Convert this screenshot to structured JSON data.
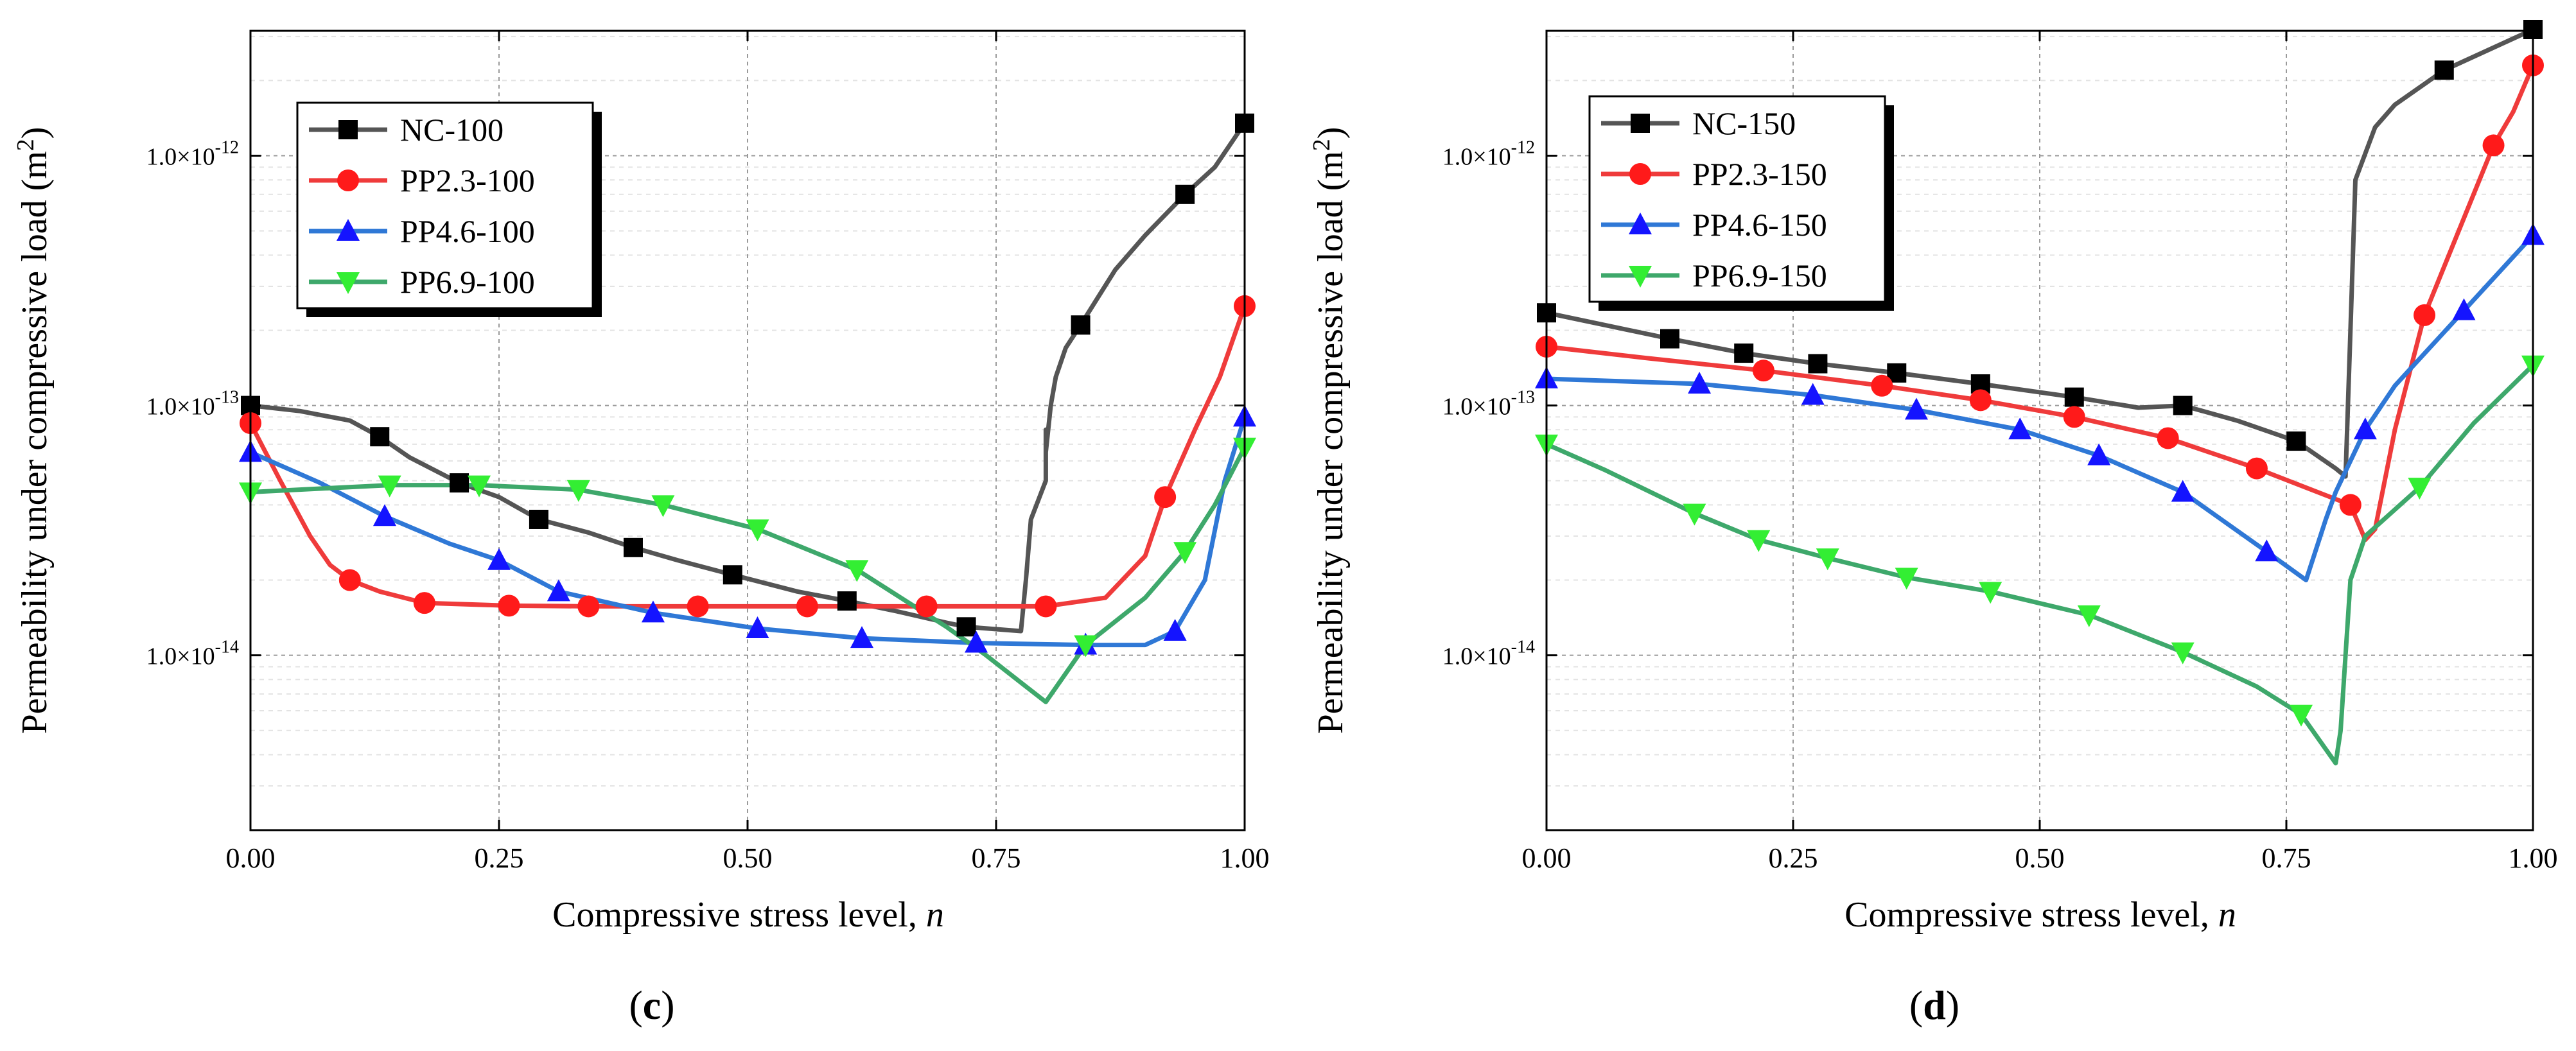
{
  "colors": {
    "NC": "#555555",
    "PP2.3": "#ef3b3b",
    "PP4.6": "#2f78d6",
    "PP6.9": "#3ea86b",
    "marker_NC": "#000000",
    "marker_PP2.3": "#ff1a1a",
    "marker_PP4.6": "#1414ff",
    "marker_PP6.9": "#33ee33"
  },
  "chart_data": [
    {
      "type": "line",
      "panel_label": "c",
      "xlabel": "Compressive stress level, ",
      "xlabel_var": "n",
      "ylabel": "Permeability under compressive load (m",
      "ylabel_sup": "2",
      "ylabel_end": ")",
      "x_scale": "linear",
      "y_scale": "log",
      "xlim": [
        0,
        1
      ],
      "ylim_log10": [
        -14.7,
        -11.5
      ],
      "x_ticks": [
        0,
        0.25,
        0.5,
        0.75,
        1
      ],
      "x_tick_labels": [
        "0.00",
        "0.25",
        "0.50",
        "0.75",
        "1.00"
      ],
      "y_ticks_log10": [
        -14,
        -13,
        -12
      ],
      "y_tick_mantissa": "1.0×10",
      "y_tick_exponents": [
        "-14",
        "-13",
        "-12"
      ],
      "grid": true,
      "legend_position": "top-left",
      "series": [
        {
          "name": "NC-100",
          "color_key": "NC",
          "marker": "square",
          "x": [
            0.0,
            0.05,
            0.1,
            0.13,
            0.16,
            0.21,
            0.25,
            0.29,
            0.34,
            0.385,
            0.43,
            0.485,
            0.55,
            0.6,
            0.65,
            0.7,
            0.72,
            0.775,
            0.78,
            0.785,
            0.8,
            0.8,
            0.8,
            0.805,
            0.81,
            0.82,
            0.835,
            0.87,
            0.9,
            0.94,
            0.97,
            1.0
          ],
          "y": [
            1e-13,
            9.5e-14,
            8.7e-14,
            7.5e-14,
            6.2e-14,
            4.9e-14,
            4.3e-14,
            3.5e-14,
            3.1e-14,
            2.7e-14,
            2.4e-14,
            2.1e-14,
            1.8e-14,
            1.65e-14,
            1.5e-14,
            1.35e-14,
            1.3e-14,
            1.25e-14,
            2e-14,
            3.5e-14,
            5e-14,
            8e-14,
            6.5e-14,
            1e-13,
            1.3e-13,
            1.7e-13,
            2.1e-13,
            3.5e-13,
            4.8e-13,
            7e-13,
            9e-13,
            1.35e-12
          ],
          "marker_x": [
            0.0,
            0.13,
            0.21,
            0.29,
            0.385,
            0.485,
            0.6,
            0.72,
            0.835,
            0.94,
            1.0
          ]
        },
        {
          "name": "PP2.3-100",
          "color_key": "PP2.3",
          "marker": "circle",
          "x": [
            0.0,
            0.03,
            0.06,
            0.08,
            0.1,
            0.13,
            0.175,
            0.26,
            0.34,
            0.45,
            0.56,
            0.68,
            0.8,
            0.86,
            0.9,
            0.92,
            0.95,
            0.975,
            1.0
          ],
          "y": [
            8.5e-14,
            5e-14,
            3e-14,
            2.3e-14,
            2e-14,
            1.8e-14,
            1.62e-14,
            1.58e-14,
            1.57e-14,
            1.57e-14,
            1.57e-14,
            1.57e-14,
            1.57e-14,
            1.7e-14,
            2.5e-14,
            4.3e-14,
            8e-14,
            1.3e-13,
            2.5e-13
          ],
          "marker_x": [
            0.0,
            0.1,
            0.175,
            0.26,
            0.34,
            0.45,
            0.56,
            0.68,
            0.8,
            0.92,
            1.0
          ]
        },
        {
          "name": "PP4.6-100",
          "color_key": "PP4.6",
          "marker": "triangle-up",
          "x": [
            0.0,
            0.07,
            0.135,
            0.2,
            0.25,
            0.31,
            0.405,
            0.51,
            0.615,
            0.73,
            0.84,
            0.9,
            0.93,
            0.96,
            0.98,
            1.0
          ],
          "y": [
            6.5e-14,
            4.9e-14,
            3.6e-14,
            2.8e-14,
            2.4e-14,
            1.8e-14,
            1.48e-14,
            1.28e-14,
            1.17e-14,
            1.12e-14,
            1.1e-14,
            1.1e-14,
            1.25e-14,
            2e-14,
            5e-14,
            9e-14
          ],
          "marker_x": [
            0.0,
            0.135,
            0.25,
            0.31,
            0.405,
            0.51,
            0.615,
            0.73,
            0.84,
            0.93,
            1.0
          ]
        },
        {
          "name": "PP6.9-100",
          "color_key": "PP6.9",
          "marker": "triangle-down",
          "x": [
            0.0,
            0.14,
            0.23,
            0.33,
            0.415,
            0.51,
            0.61,
            0.7,
            0.74,
            0.78,
            0.8,
            0.84,
            0.9,
            0.94,
            0.97,
            1.0
          ],
          "y": [
            4.5e-14,
            4.8e-14,
            4.8e-14,
            4.6e-14,
            4e-14,
            3.2e-14,
            2.2e-14,
            1.3e-14,
            1e-14,
            7.5e-15,
            6.5e-15,
            1.1e-14,
            1.7e-14,
            2.6e-14,
            4e-14,
            6.8e-14
          ],
          "marker_x": [
            0.0,
            0.14,
            0.23,
            0.33,
            0.415,
            0.51,
            0.61,
            0.84,
            0.94,
            1.0
          ]
        }
      ]
    },
    {
      "type": "line",
      "panel_label": "d",
      "xlabel": "Compressive stress level, ",
      "xlabel_var": "n",
      "ylabel": "Permeability under compressive load (m",
      "ylabel_sup": "2",
      "ylabel_end": ")",
      "x_scale": "linear",
      "y_scale": "log",
      "xlim": [
        0,
        1
      ],
      "ylim_log10": [
        -14.7,
        -11.5
      ],
      "x_ticks": [
        0,
        0.25,
        0.5,
        0.75,
        1
      ],
      "x_tick_labels": [
        "0.00",
        "0.25",
        "0.50",
        "0.75",
        "1.00"
      ],
      "y_ticks_log10": [
        -14,
        -13,
        -12
      ],
      "y_tick_mantissa": "1.0×10",
      "y_tick_exponents": [
        "-14",
        "-13",
        "-12"
      ],
      "grid": true,
      "legend_position": "top-left",
      "series": [
        {
          "name": "NC-150",
          "color_key": "NC",
          "marker": "square",
          "x": [
            0.0,
            0.125,
            0.2,
            0.275,
            0.355,
            0.44,
            0.535,
            0.6,
            0.645,
            0.7,
            0.76,
            0.8,
            0.81,
            0.815,
            0.82,
            0.84,
            0.86,
            0.91,
            1.0
          ],
          "y": [
            2.35e-13,
            1.85e-13,
            1.62e-13,
            1.47e-13,
            1.35e-13,
            1.22e-13,
            1.08e-13,
            9.8e-14,
            1e-13,
            8.7e-14,
            7.2e-14,
            5.6e-14,
            5.2e-14,
            2e-13,
            8e-13,
            1.3e-12,
            1.6e-12,
            2.2e-12,
            3.2e-12
          ],
          "marker_x": [
            0.0,
            0.125,
            0.2,
            0.275,
            0.355,
            0.44,
            0.535,
            0.645,
            0.76,
            0.91,
            1.0
          ]
        },
        {
          "name": "PP2.3-150",
          "color_key": "PP2.3",
          "marker": "circle",
          "x": [
            0.0,
            0.1,
            0.22,
            0.34,
            0.44,
            0.535,
            0.63,
            0.72,
            0.815,
            0.83,
            0.84,
            0.86,
            0.89,
            0.92,
            0.96,
            0.98,
            1.0
          ],
          "y": [
            1.72e-13,
            1.55e-13,
            1.38e-13,
            1.2e-13,
            1.05e-13,
            9e-14,
            7.4e-14,
            5.6e-14,
            4e-14,
            2.9e-14,
            3.2e-14,
            8e-14,
            2.3e-13,
            4.5e-13,
            1.1e-12,
            1.5e-12,
            2.3e-12
          ],
          "marker_x": [
            0.0,
            0.22,
            0.34,
            0.44,
            0.535,
            0.63,
            0.72,
            0.815,
            0.89,
            0.96,
            1.0
          ]
        },
        {
          "name": "PP4.6-150",
          "color_key": "PP4.6",
          "marker": "triangle-up",
          "x": [
            0.0,
            0.155,
            0.27,
            0.375,
            0.48,
            0.56,
            0.645,
            0.73,
            0.77,
            0.79,
            0.8,
            0.83,
            0.86,
            0.93,
            1.0
          ],
          "y": [
            1.28e-13,
            1.22e-13,
            1.1e-13,
            9.6e-14,
            8e-14,
            6.3e-14,
            4.5e-14,
            2.6e-14,
            2e-14,
            3.5e-14,
            4.5e-14,
            8e-14,
            1.2e-13,
            2.4e-13,
            4.8e-13
          ],
          "marker_x": [
            0.0,
            0.155,
            0.27,
            0.375,
            0.48,
            0.56,
            0.645,
            0.73,
            0.83,
            0.93,
            1.0
          ]
        },
        {
          "name": "PP6.9-150",
          "color_key": "PP6.9",
          "marker": "triangle-down",
          "x": [
            0.0,
            0.06,
            0.15,
            0.215,
            0.285,
            0.365,
            0.45,
            0.55,
            0.645,
            0.72,
            0.765,
            0.8,
            0.805,
            0.815,
            0.83,
            0.885,
            0.94,
            1.0
          ],
          "y": [
            7e-14,
            5.5e-14,
            3.7e-14,
            2.9e-14,
            2.45e-14,
            2.05e-14,
            1.8e-14,
            1.45e-14,
            1.03e-14,
            7.5e-15,
            5.8e-15,
            3.7e-15,
            5e-15,
            2e-14,
            3e-14,
            4.7e-14,
            8.5e-14,
            1.45e-13
          ],
          "marker_x": [
            0.0,
            0.15,
            0.215,
            0.285,
            0.365,
            0.45,
            0.55,
            0.645,
            0.765,
            0.885,
            1.0
          ]
        }
      ]
    }
  ]
}
